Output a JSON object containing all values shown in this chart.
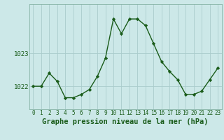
{
  "x": [
    0,
    1,
    2,
    3,
    4,
    5,
    6,
    7,
    8,
    9,
    10,
    11,
    12,
    13,
    14,
    15,
    16,
    17,
    18,
    19,
    20,
    21,
    22,
    23
  ],
  "y": [
    1022.0,
    1022.0,
    1022.4,
    1022.15,
    1021.65,
    1021.65,
    1021.75,
    1021.9,
    1022.3,
    1022.85,
    1024.05,
    1023.6,
    1024.05,
    1024.05,
    1023.85,
    1023.3,
    1022.75,
    1022.45,
    1022.2,
    1021.75,
    1021.75,
    1021.85,
    1022.2,
    1022.55
  ],
  "line_color": "#1a5c1a",
  "marker": "D",
  "marker_size": 2.2,
  "linewidth": 1.0,
  "bg_color": "#cce8e8",
  "grid_color": "#aacccc",
  "xlabel": "Graphe pression niveau de la mer (hPa)",
  "xlabel_fontsize": 7.5,
  "xlabel_fontweight": "bold",
  "ytick_labels": [
    "1022",
    "1023"
  ],
  "ytick_values": [
    1022.0,
    1023.0
  ],
  "ylim": [
    1021.3,
    1024.5
  ],
  "xlim": [
    -0.5,
    23.5
  ],
  "xtick_fontsize": 5.5,
  "ytick_fontsize": 6.5
}
